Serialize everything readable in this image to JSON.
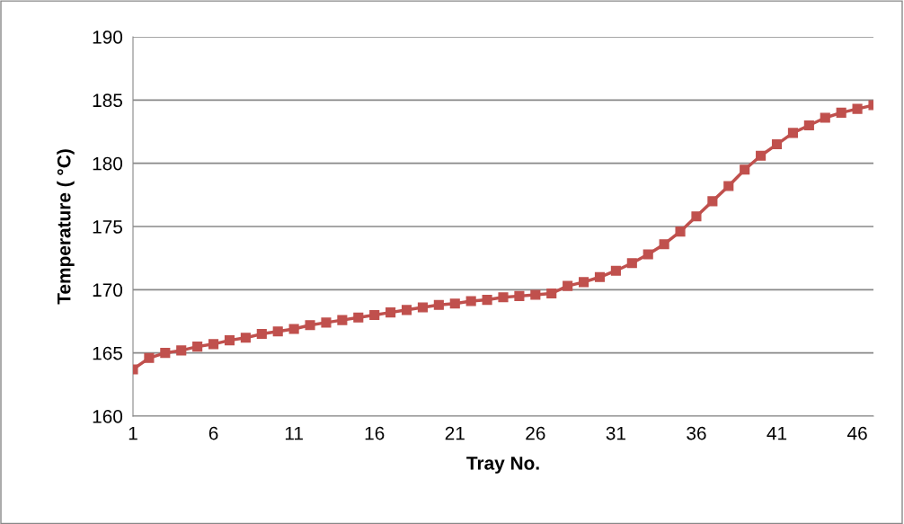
{
  "chart_data": {
    "type": "line",
    "xlabel": "Tray No.",
    "ylabel": "Temperature ( °C)",
    "x": [
      1,
      2,
      3,
      4,
      5,
      6,
      7,
      8,
      9,
      10,
      11,
      12,
      13,
      14,
      15,
      16,
      17,
      18,
      19,
      20,
      21,
      22,
      23,
      24,
      25,
      26,
      27,
      28,
      29,
      30,
      31,
      32,
      33,
      34,
      35,
      36,
      37,
      38,
      39,
      40,
      41,
      42,
      43,
      44,
      45,
      46,
      47
    ],
    "series": [
      {
        "color": "#c0504d",
        "values": [
          163.7,
          164.6,
          165.0,
          165.2,
          165.5,
          165.7,
          166.0,
          166.2,
          166.5,
          166.7,
          166.9,
          167.2,
          167.4,
          167.6,
          167.8,
          168.0,
          168.2,
          168.4,
          168.6,
          168.8,
          168.9,
          169.1,
          169.2,
          169.4,
          169.5,
          169.6,
          169.7,
          170.3,
          170.6,
          171.0,
          171.5,
          172.1,
          172.8,
          173.6,
          174.6,
          175.8,
          177.0,
          178.2,
          179.5,
          180.6,
          181.5,
          182.4,
          183.0,
          183.6,
          184.0,
          184.3,
          184.6
        ]
      }
    ],
    "xlim": [
      1,
      47
    ],
    "xticks": [
      1,
      6,
      11,
      16,
      21,
      26,
      31,
      36,
      41,
      46
    ],
    "ylim": [
      160,
      190
    ],
    "yticks": [
      160,
      165,
      170,
      175,
      180,
      185,
      190
    ],
    "grid": "y",
    "marker": "square",
    "line_style": "solid"
  }
}
